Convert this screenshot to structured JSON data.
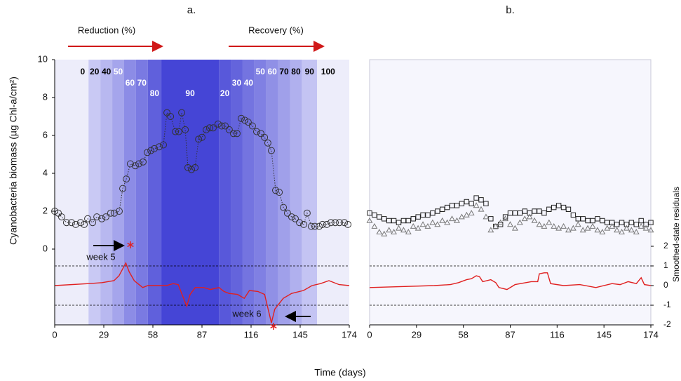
{
  "xlabel": "Time (days)",
  "chart_data": [
    {
      "type": "line",
      "title": "a.",
      "ylabel": "Cyanobacteria biomass (µg Chl-a/cm²)",
      "phase_labels": [
        "Reduction (%)",
        "Recovery (%)"
      ],
      "annotations": [
        "week 5",
        "week 6"
      ],
      "background": "#ededfa",
      "xlim": [
        0,
        174
      ],
      "xticks": [
        0,
        29,
        58,
        87,
        116,
        145,
        174
      ],
      "ylim": [
        -4,
        10
      ],
      "yticks": [
        0,
        2,
        4,
        6,
        8,
        10
      ],
      "y2lim": [
        -2,
        11.5
      ],
      "reference_lines": [
        1,
        -1
      ],
      "bands": [
        {
          "label": 0,
          "start": 13,
          "end": 20,
          "color": "#ededfa",
          "text_color": "#000"
        },
        {
          "label": 20,
          "start": 20,
          "end": 27,
          "color": "#c9c9f4",
          "text_color": "#000"
        },
        {
          "label": 40,
          "start": 27,
          "end": 34,
          "color": "#b8b8f0",
          "text_color": "#000"
        },
        {
          "label": 50,
          "start": 34,
          "end": 41,
          "color": "#a5a5ec",
          "text_color": "#fff"
        },
        {
          "label": 60,
          "start": 41,
          "end": 48,
          "color": "#8c8ce6",
          "text_color": "#fff"
        },
        {
          "label": 70,
          "start": 48,
          "end": 55,
          "color": "#7a7ae2",
          "text_color": "#fff"
        },
        {
          "label": 80,
          "start": 55,
          "end": 63,
          "color": "#6060dc",
          "text_color": "#fff"
        },
        {
          "label": 90,
          "start": 63,
          "end": 97,
          "color": "#4545d6",
          "text_color": "#fff"
        },
        {
          "label": 20,
          "start": 97,
          "end": 104,
          "color": "#5858da",
          "text_color": "#fff"
        },
        {
          "label": 30,
          "start": 104,
          "end": 111,
          "color": "#6464dc",
          "text_color": "#fff"
        },
        {
          "label": 40,
          "start": 111,
          "end": 118,
          "color": "#7474e0",
          "text_color": "#fff"
        },
        {
          "label": 50,
          "start": 118,
          "end": 125,
          "color": "#8080e3",
          "text_color": "#fff"
        },
        {
          "label": 60,
          "start": 125,
          "end": 132,
          "color": "#9090e6",
          "text_color": "#fff"
        },
        {
          "label": 70,
          "start": 132,
          "end": 139,
          "color": "#a0a0ea",
          "text_color": "#000"
        },
        {
          "label": 80,
          "start": 139,
          "end": 146,
          "color": "#b0b0ee",
          "text_color": "#000"
        },
        {
          "label": 90,
          "start": 146,
          "end": 155,
          "color": "#c4c4f3",
          "text_color": "#000"
        },
        {
          "label": 100,
          "start": 155,
          "end": 168,
          "color": "#ededfa",
          "text_color": "#000"
        }
      ],
      "x": [
        0,
        2.1,
        4.1,
        7.0,
        9.9,
        12.4,
        15.3,
        17.4,
        19.5,
        22.4,
        24.9,
        27.8,
        30.2,
        33.1,
        35.2,
        38.1,
        40.2,
        42.3,
        44.7,
        47.6,
        49.7,
        52.2,
        54.7,
        56.8,
        58.8,
        61.7,
        64.2,
        66.3,
        68.4,
        71.3,
        73.3,
        75.0,
        77.1,
        78.7,
        80.8,
        82.9,
        85.0,
        87.0,
        89.5,
        91.5,
        93.6,
        96.5,
        98.6,
        100.7,
        103.1,
        105.6,
        107.7,
        110.2,
        112.3,
        114.3,
        116.8,
        119.3,
        121.8,
        123.9,
        125.9,
        128.0,
        130.5,
        132.6,
        135.1,
        137.5,
        140.0,
        142.1,
        144.6,
        147.1,
        149.1,
        151.6,
        153.7,
        156.2,
        158.2,
        160.7,
        163.2,
        165.7,
        168.2,
        171.1,
        173.2
      ],
      "series": [
        {
          "marker": "circle",
          "line": "dotted",
          "color": "#333333",
          "values": [
            2.0,
            1.9,
            1.7,
            1.4,
            1.4,
            1.3,
            1.4,
            1.3,
            1.6,
            1.4,
            1.7,
            1.6,
            1.7,
            1.9,
            1.9,
            2.0,
            3.2,
            3.7,
            4.5,
            4.4,
            4.5,
            4.6,
            5.1,
            5.2,
            5.3,
            5.4,
            5.5,
            7.2,
            7.0,
            6.2,
            6.2,
            7.2,
            6.3,
            4.3,
            4.2,
            4.3,
            5.8,
            5.9,
            6.3,
            6.4,
            6.4,
            6.6,
            6.5,
            6.5,
            6.3,
            6.1,
            6.1,
            6.9,
            6.8,
            6.7,
            6.5,
            6.2,
            6.1,
            5.9,
            5.6,
            5.2,
            3.1,
            3.0,
            2.2,
            1.9,
            1.7,
            1.6,
            1.4,
            1.3,
            1.9,
            1.2,
            1.2,
            1.2,
            1.3,
            1.3,
            1.4,
            1.4,
            1.4,
            1.4,
            1.3
          ]
        },
        {
          "axis": "y2",
          "line": "solid",
          "color": "#e02020",
          "x": [
            0,
            20,
            28,
            35,
            38,
            42,
            44,
            47,
            52,
            55,
            60,
            62,
            66,
            70,
            73,
            75,
            78,
            80,
            83,
            88,
            92,
            97,
            100,
            103,
            108,
            112,
            115,
            120,
            124,
            128,
            130,
            135,
            140,
            147,
            152,
            157,
            162,
            168,
            174
          ],
          "values": [
            0.0,
            0.1,
            0.15,
            0.25,
            0.5,
            1.15,
            0.7,
            0.25,
            -0.1,
            0,
            0,
            0,
            0,
            0.1,
            0.05,
            -0.4,
            -1.05,
            -0.45,
            -0.1,
            -0.1,
            -0.2,
            -0.1,
            -0.3,
            -0.4,
            -0.45,
            -0.65,
            -0.25,
            -0.3,
            -0.45,
            -1.9,
            -1.2,
            -0.65,
            -0.4,
            -0.25,
            0,
            0.1,
            0.25,
            0.05,
            0
          ]
        }
      ]
    },
    {
      "type": "line",
      "title": "b.",
      "y2label": "Smoothed-state residuals",
      "background": "#f6f6fd",
      "xlim": [
        0,
        174
      ],
      "xticks": [
        0,
        29,
        58,
        87,
        116,
        145,
        174
      ],
      "ylim": [
        -4,
        10
      ],
      "y2lim": [
        -2,
        11.5
      ],
      "y2ticks": [
        -2,
        -1,
        0,
        1,
        2
      ],
      "reference_lines": [
        1,
        -1
      ],
      "x": [
        0,
        3,
        6,
        9,
        12,
        15,
        18,
        21,
        24,
        27,
        30,
        33,
        36,
        39,
        42,
        45,
        48,
        51,
        54,
        57,
        60,
        63,
        66,
        69,
        72,
        75,
        78,
        81,
        84,
        87,
        90,
        93,
        96,
        99,
        102,
        105,
        108,
        111,
        114,
        117,
        120,
        123,
        126,
        129,
        132,
        135,
        138,
        141,
        144,
        147,
        150,
        153,
        156,
        159,
        162,
        165,
        168,
        171,
        174
      ],
      "series": [
        {
          "marker": "square",
          "color": "#222222",
          "values": [
            1.9,
            1.8,
            1.7,
            1.6,
            1.5,
            1.5,
            1.4,
            1.5,
            1.5,
            1.6,
            1.7,
            1.8,
            1.8,
            1.9,
            2.0,
            2.1,
            2.2,
            2.3,
            2.3,
            2.4,
            2.5,
            2.4,
            2.7,
            2.6,
            2.4,
            1.6,
            1.2,
            1.3,
            1.7,
            1.9,
            1.9,
            1.9,
            2.0,
            1.9,
            2.0,
            2.0,
            1.9,
            2.1,
            2.2,
            2.3,
            2.2,
            2.1,
            1.8,
            1.6,
            1.6,
            1.5,
            1.5,
            1.6,
            1.5,
            1.4,
            1.4,
            1.3,
            1.4,
            1.3,
            1.4,
            1.3,
            1.5,
            1.3,
            1.4
          ]
        },
        {
          "marker": "triangle",
          "color": "#777777",
          "values": [
            1.5,
            1.2,
            0.9,
            0.8,
            1.0,
            0.9,
            1.1,
            1.0,
            0.9,
            1.2,
            1.1,
            1.3,
            1.2,
            1.4,
            1.3,
            1.5,
            1.4,
            1.6,
            1.5,
            1.7,
            1.8,
            1.9,
            2.3,
            2.1,
            1.7,
            1.0,
            1.2,
            1.4,
            1.6,
            1.3,
            1.1,
            1.4,
            1.6,
            1.7,
            1.5,
            1.3,
            1.2,
            1.4,
            1.2,
            1.1,
            1.2,
            1.0,
            1.1,
            1.3,
            1.0,
            1.1,
            1.2,
            1.0,
            0.9,
            1.1,
            1.2,
            1.0,
            0.9,
            1.1,
            1.0,
            0.9,
            1.2,
            1.1,
            1.0
          ]
        },
        {
          "axis": "y2",
          "line": "solid",
          "color": "#e02020",
          "x": [
            0,
            20,
            40,
            50,
            55,
            60,
            63,
            66,
            68,
            70,
            75,
            78,
            80,
            85,
            90,
            100,
            104,
            105,
            108,
            110,
            112,
            120,
            130,
            140,
            150,
            155,
            160,
            165,
            168,
            170,
            174
          ],
          "values": [
            -0.1,
            -0.05,
            0,
            0.05,
            0.15,
            0.3,
            0.35,
            0.5,
            0.45,
            0.2,
            0.3,
            0.15,
            -0.1,
            -0.2,
            0.05,
            0.2,
            0.2,
            0.6,
            0.65,
            0.65,
            0.1,
            0.0,
            0.05,
            -0.1,
            0.1,
            0.05,
            0.2,
            0.1,
            0.4,
            0.05,
            0.0
          ]
        }
      ]
    }
  ]
}
